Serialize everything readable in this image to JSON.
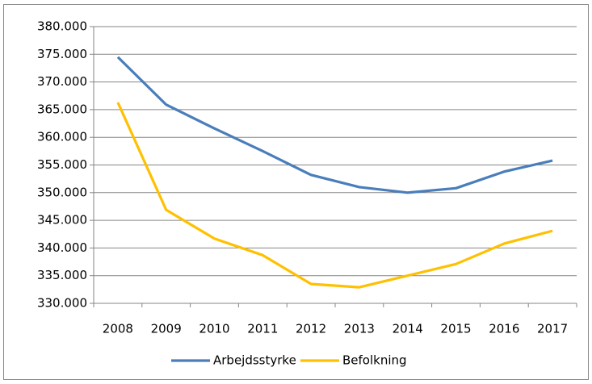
{
  "chart_data": {
    "type": "line",
    "categories": [
      "2008",
      "2009",
      "2010",
      "2011",
      "2012",
      "2013",
      "2014",
      "2015",
      "2016",
      "2017"
    ],
    "series": [
      {
        "name": "Arbejdsstyrke",
        "color": "#4a7ebb",
        "values": [
          374500,
          365900,
          361600,
          357500,
          353200,
          351000,
          350000,
          350800,
          353800,
          355800
        ]
      },
      {
        "name": "Befolkning",
        "color": "#ffc000",
        "values": [
          366300,
          346900,
          341700,
          338700,
          333500,
          332900,
          335000,
          337100,
          340800,
          343100
        ]
      }
    ],
    "ylim": [
      330000,
      380000
    ],
    "yticks": [
      {
        "value": 330000,
        "label": "330.000"
      },
      {
        "value": 335000,
        "label": "335.000"
      },
      {
        "value": 340000,
        "label": "340.000"
      },
      {
        "value": 345000,
        "label": "345.000"
      },
      {
        "value": 350000,
        "label": "350.000"
      },
      {
        "value": 355000,
        "label": "355.000"
      },
      {
        "value": 360000,
        "label": "360.000"
      },
      {
        "value": 365000,
        "label": "365.000"
      },
      {
        "value": 370000,
        "label": "370.000"
      },
      {
        "value": 375000,
        "label": "375.000"
      },
      {
        "value": 380000,
        "label": "380.000"
      }
    ],
    "grid": true,
    "legend": "bottom"
  }
}
